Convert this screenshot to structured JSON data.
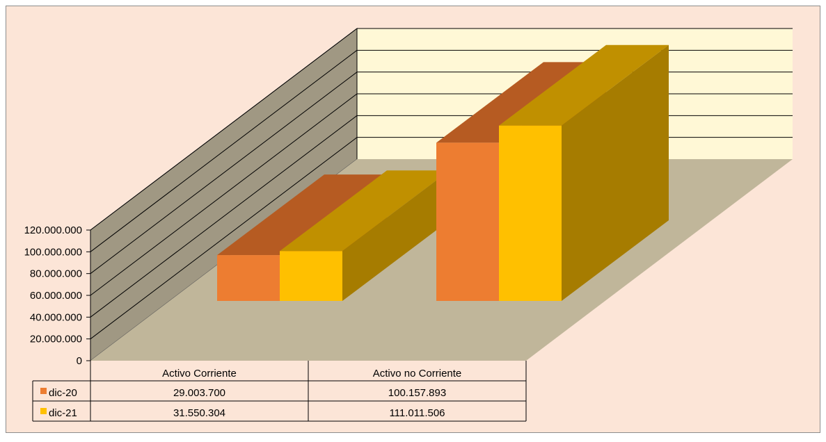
{
  "chart_data": {
    "type": "bar",
    "categories": [
      "Activo Corriente",
      "Activo no Corriente"
    ],
    "series": [
      {
        "name": "dic-20",
        "values": [
          29003700,
          100157893
        ],
        "value_labels": [
          "29.003.700",
          "100.157.893"
        ],
        "color": "#ED7D31",
        "top_color": "#B65B22",
        "side_color": "#A45220"
      },
      {
        "name": "dic-21",
        "values": [
          31550304,
          111011506
        ],
        "value_labels": [
          "31.550.304",
          "111.011.506"
        ],
        "color": "#FFC000",
        "top_color": "#C09000",
        "side_color": "#A67C00"
      }
    ],
    "ylim": [
      0,
      120000000
    ],
    "y_ticks": [
      "0",
      "20.000.000",
      "40.000.000",
      "60.000.000",
      "80.000.000",
      "100.000.000",
      "120.000.000"
    ],
    "grid": true,
    "data_table": true,
    "colors": {
      "background": "#FCE5D7",
      "back_wall": "#FFF8D6",
      "side_wall": "#A09883",
      "floor": "#C0B69A",
      "border": "#8C8C8C"
    }
  }
}
